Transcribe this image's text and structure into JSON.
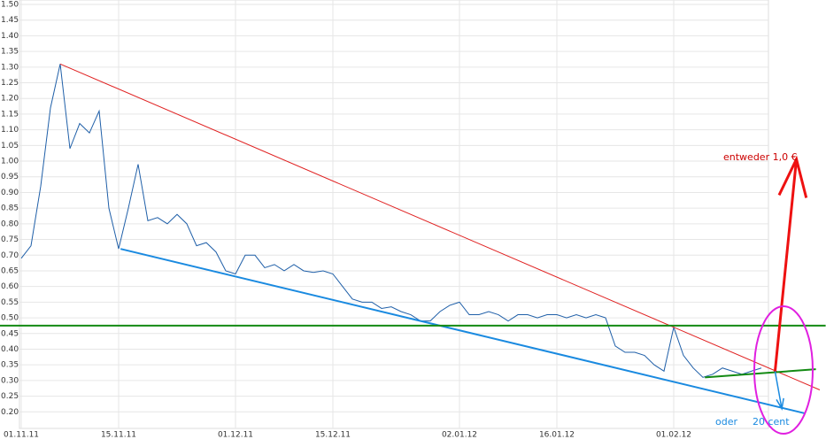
{
  "chart_data": {
    "type": "line",
    "annotations": [
      "entweder 1,0 €",
      "oder",
      "20 cent"
    ],
    "annotation_colors": [
      "#cc0000",
      "#1a8ae0",
      "#1a8ae0"
    ],
    "series": [
      {
        "color": "#1f5fa8",
        "values": [
          0.69,
          0.73,
          0.92,
          1.17,
          1.31,
          1.04,
          1.12,
          1.09,
          1.16,
          0.85,
          0.72,
          0.85,
          0.99,
          0.81,
          0.82,
          0.8,
          0.83,
          0.8,
          0.73,
          0.74,
          0.71,
          0.65,
          0.64,
          0.7,
          0.7,
          0.66,
          0.67,
          0.65,
          0.67,
          0.65,
          0.645,
          0.65,
          0.64,
          0.6,
          0.56,
          0.55,
          0.55,
          0.53,
          0.535,
          0.52,
          0.51,
          0.49,
          0.49,
          0.52,
          0.54,
          0.55,
          0.51,
          0.51,
          0.52,
          0.51,
          0.49,
          0.51,
          0.51,
          0.5,
          0.51,
          0.51,
          0.5,
          0.51,
          0.5,
          0.51,
          0.5,
          0.41,
          0.39,
          0.39,
          0.38,
          0.35,
          0.33,
          0.47,
          0.38,
          0.34,
          0.31,
          0.32,
          0.34,
          0.33,
          0.32,
          0.33,
          0.34
        ]
      }
    ],
    "trend_lines": [
      {
        "color": "#e02020",
        "x": [
          4,
          82
        ],
        "values": [
          1.31,
          0.27
        ]
      },
      {
        "color": "#1a8ae0",
        "x": [
          10.2,
          80.5
        ],
        "values": [
          0.72,
          0.195
        ]
      },
      {
        "color": "#138a13",
        "x": [
          -2.2,
          82.6
        ],
        "values": [
          0.475,
          0.475
        ]
      },
      {
        "color": "#138a13",
        "x": [
          70.2,
          81.6
        ],
        "values": [
          0.31,
          0.336
        ]
      }
    ],
    "arrows": [
      {
        "color": "#ee1111",
        "x": [
          77.4,
          79.6
        ],
        "values": [
          0.328,
          1.006
        ]
      },
      {
        "color": "#1a8ae0",
        "x": [
          77.4,
          78.1
        ],
        "values": [
          0.33,
          0.21
        ]
      }
    ],
    "xlim": [
      0,
      77
    ],
    "xticks": [
      {
        "value": 0,
        "label": "01.11.11"
      },
      {
        "value": 10,
        "label": "15.11.11"
      },
      {
        "value": 22,
        "label": "01.12.11"
      },
      {
        "value": 32,
        "label": "15.12.11"
      },
      {
        "value": 45,
        "label": "02.01.12"
      },
      {
        "value": 55,
        "label": "16.01.12"
      },
      {
        "value": 67,
        "label": "01.02.12"
      }
    ],
    "ylim": [
      0.15,
      1.5
    ],
    "yticks": [
      {
        "value": 0.2,
        "label": "0.20"
      },
      0.25,
      {
        "value": 0.3,
        "label": "0.30"
      },
      0.35,
      {
        "value": 0.4,
        "label": "0.40"
      },
      0.45,
      {
        "value": 0.5,
        "label": "0.50"
      },
      0.55,
      {
        "value": 0.6,
        "label": "0.60"
      },
      0.65,
      {
        "value": 0.7,
        "label": "0.70"
      },
      0.75,
      {
        "value": 0.8,
        "label": "0.80"
      },
      0.85,
      {
        "value": 0.9,
        "label": "0.90"
      },
      0.95,
      {
        "value": 1.0,
        "label": "1.00"
      },
      1.05,
      {
        "value": 1.1,
        "label": "1.10"
      },
      1.15,
      {
        "value": 1.2,
        "label": "1.20"
      },
      1.25,
      {
        "value": 1.3,
        "label": "1.30"
      },
      1.35,
      {
        "value": 1.4,
        "label": "1.40"
      },
      1.45,
      {
        "value": 1.5,
        "label": "1.50"
      }
    ],
    "grid": true
  }
}
